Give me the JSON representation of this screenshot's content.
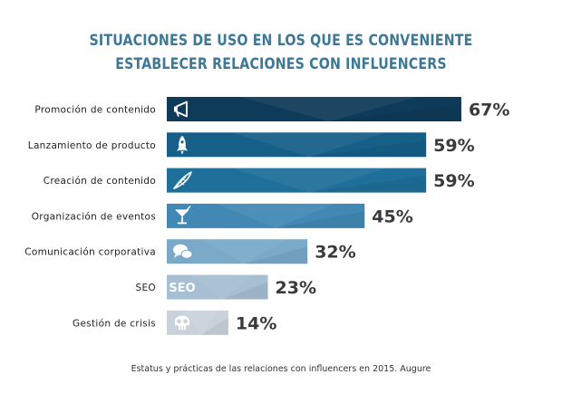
{
  "chart_data": {
    "type": "bar",
    "orientation": "horizontal",
    "title_lines": [
      "SITUACIONES DE USO EN LOS QUE ES CONVENIENTE",
      "ESTABLECER RELACIONES CON INFLUENCERS"
    ],
    "categories": [
      "Promoción de contenido",
      "Lanzamiento de producto",
      "Creación de contenido",
      "Organización de eventos",
      "Comunicación corporativa",
      "SEO",
      "Gestión de crisis"
    ],
    "values": [
      67,
      59,
      59,
      45,
      32,
      23,
      14
    ],
    "value_labels": [
      "67%",
      "59%",
      "59%",
      "45%",
      "32%",
      "23%",
      "14%"
    ],
    "bar_colors": [
      "#0f3b5a",
      "#155f88",
      "#1e6f99",
      "#4189b4",
      "#7aaac8",
      "#a6bfd3",
      "#c9d2db"
    ],
    "bar_icons": [
      "megaphone-icon",
      "rocket-icon",
      "quill-icon",
      "cocktail-icon",
      "speech-bubbles-icon",
      "seo-icon",
      "skull-icon"
    ],
    "seo_icon_text": "SEO",
    "xlim": [
      0,
      100
    ],
    "grid": false,
    "legend": "none",
    "source": "Estatus y prácticas de las relaciones con influencers en 2015. Augure"
  }
}
